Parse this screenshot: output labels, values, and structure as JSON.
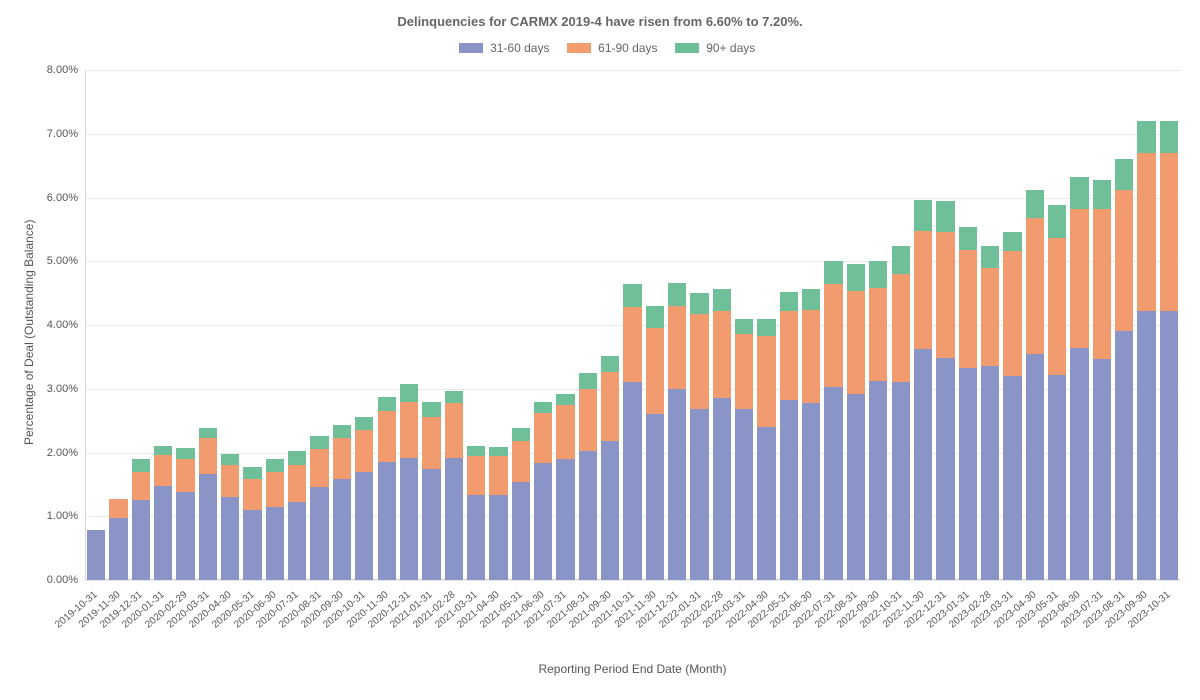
{
  "chart": {
    "type": "stacked-bar",
    "title": "Delinquencies for CARMX 2019-4 have risen from 6.60% to 7.20%.",
    "title_fontsize": 13,
    "title_fontweight": 700,
    "title_color": "#666666",
    "background_color": "#ffffff",
    "grid_color": "#e9e9e9",
    "axis_line_color": "#d8d8d8",
    "label_color": "#555555",
    "font_family": "Helvetica Neue, Arial, sans-serif",
    "x_axis_title": "Reporting Period End Date (Month)",
    "y_axis_title": "Percentage of Deal (Outstanding Balance)",
    "axis_title_fontsize": 12,
    "tick_fontsize": 11,
    "x_tick_fontsize": 10,
    "x_tick_rotation_deg": -40,
    "ylim": [
      0,
      8
    ],
    "ytick_step": 1,
    "y_tick_format": "pct2",
    "bar_gap_ratio": 0.18,
    "legend": {
      "position": "top-center",
      "items": [
        {
          "label": "31-60 days",
          "color": "#8a94c6"
        },
        {
          "label": "61-90 days",
          "color": "#f19b6f"
        },
        {
          "label": "90+ days",
          "color": "#6fbf99"
        }
      ]
    },
    "series_keys": [
      "d31_60",
      "d61_90",
      "d90p"
    ],
    "series_colors": {
      "d31_60": "#8a94c6",
      "d61_90": "#f19b6f",
      "d90p": "#6fbf99"
    },
    "categories": [
      "2019-10-31",
      "2019-11-30",
      "2019-12-31",
      "2020-01-31",
      "2020-02-29",
      "2020-03-31",
      "2020-04-30",
      "2020-05-31",
      "2020-06-30",
      "2020-07-31",
      "2020-08-31",
      "2020-09-30",
      "2020-10-31",
      "2020-11-30",
      "2020-12-31",
      "2021-01-31",
      "2021-02-28",
      "2021-03-31",
      "2021-04-30",
      "2021-05-31",
      "2021-06-30",
      "2021-07-31",
      "2021-08-31",
      "2021-09-30",
      "2021-10-31",
      "2021-11-30",
      "2021-12-31",
      "2022-01-31",
      "2022-02-28",
      "2022-03-31",
      "2022-04-30",
      "2022-05-31",
      "2022-06-30",
      "2022-07-31",
      "2022-08-31",
      "2022-09-30",
      "2022-10-31",
      "2022-11-30",
      "2022-12-31",
      "2023-01-31",
      "2023-02-28",
      "2023-03-31",
      "2023-04-30",
      "2023-05-31",
      "2023-06-30",
      "2023-07-31",
      "2023-08-31",
      "2023-09-30",
      "2023-10-31"
    ],
    "data": [
      {
        "d31_60": 0.78,
        "d61_90": 0.0,
        "d90p": 0.0
      },
      {
        "d31_60": 0.97,
        "d61_90": 0.3,
        "d90p": 0.0
      },
      {
        "d31_60": 1.25,
        "d61_90": 0.45,
        "d90p": 0.2
      },
      {
        "d31_60": 1.48,
        "d61_90": 0.48,
        "d90p": 0.15
      },
      {
        "d31_60": 1.38,
        "d61_90": 0.52,
        "d90p": 0.17
      },
      {
        "d31_60": 1.66,
        "d61_90": 0.57,
        "d90p": 0.15
      },
      {
        "d31_60": 1.3,
        "d61_90": 0.5,
        "d90p": 0.18
      },
      {
        "d31_60": 1.1,
        "d61_90": 0.48,
        "d90p": 0.2
      },
      {
        "d31_60": 1.15,
        "d61_90": 0.55,
        "d90p": 0.2
      },
      {
        "d31_60": 1.23,
        "d61_90": 0.58,
        "d90p": 0.22
      },
      {
        "d31_60": 1.46,
        "d61_90": 0.6,
        "d90p": 0.2
      },
      {
        "d31_60": 1.58,
        "d61_90": 0.65,
        "d90p": 0.2
      },
      {
        "d31_60": 1.7,
        "d61_90": 0.65,
        "d90p": 0.2
      },
      {
        "d31_60": 1.85,
        "d61_90": 0.8,
        "d90p": 0.22
      },
      {
        "d31_60": 1.92,
        "d61_90": 0.88,
        "d90p": 0.28
      },
      {
        "d31_60": 1.74,
        "d61_90": 0.82,
        "d90p": 0.24
      },
      {
        "d31_60": 1.92,
        "d61_90": 0.86,
        "d90p": 0.18
      },
      {
        "d31_60": 1.34,
        "d61_90": 0.6,
        "d90p": 0.16
      },
      {
        "d31_60": 1.34,
        "d61_90": 0.6,
        "d90p": 0.14
      },
      {
        "d31_60": 1.54,
        "d61_90": 0.64,
        "d90p": 0.2
      },
      {
        "d31_60": 1.84,
        "d61_90": 0.78,
        "d90p": 0.18
      },
      {
        "d31_60": 1.9,
        "d61_90": 0.84,
        "d90p": 0.18
      },
      {
        "d31_60": 2.02,
        "d61_90": 0.98,
        "d90p": 0.24
      },
      {
        "d31_60": 2.18,
        "d61_90": 1.08,
        "d90p": 0.26
      },
      {
        "d31_60": 3.1,
        "d61_90": 1.18,
        "d90p": 0.36
      },
      {
        "d31_60": 2.6,
        "d61_90": 1.36,
        "d90p": 0.34
      },
      {
        "d31_60": 3.0,
        "d61_90": 1.3,
        "d90p": 0.36
      },
      {
        "d31_60": 2.68,
        "d61_90": 1.5,
        "d90p": 0.32
      },
      {
        "d31_60": 2.86,
        "d61_90": 1.36,
        "d90p": 0.34
      },
      {
        "d31_60": 2.68,
        "d61_90": 1.18,
        "d90p": 0.24
      },
      {
        "d31_60": 2.4,
        "d61_90": 1.42,
        "d90p": 0.28
      },
      {
        "d31_60": 2.82,
        "d61_90": 1.4,
        "d90p": 0.3
      },
      {
        "d31_60": 2.78,
        "d61_90": 1.46,
        "d90p": 0.32
      },
      {
        "d31_60": 3.02,
        "d61_90": 1.62,
        "d90p": 0.36
      },
      {
        "d31_60": 2.92,
        "d61_90": 1.62,
        "d90p": 0.42
      },
      {
        "d31_60": 3.12,
        "d61_90": 1.46,
        "d90p": 0.42
      },
      {
        "d31_60": 3.1,
        "d61_90": 1.7,
        "d90p": 0.44
      },
      {
        "d31_60": 3.62,
        "d61_90": 1.86,
        "d90p": 0.48
      },
      {
        "d31_60": 3.48,
        "d61_90": 1.98,
        "d90p": 0.48
      },
      {
        "d31_60": 3.32,
        "d61_90": 1.86,
        "d90p": 0.36
      },
      {
        "d31_60": 3.36,
        "d61_90": 1.54,
        "d90p": 0.34
      },
      {
        "d31_60": 3.2,
        "d61_90": 1.96,
        "d90p": 0.3
      },
      {
        "d31_60": 3.54,
        "d61_90": 2.14,
        "d90p": 0.44
      },
      {
        "d31_60": 3.22,
        "d61_90": 2.14,
        "d90p": 0.52
      },
      {
        "d31_60": 3.64,
        "d61_90": 2.18,
        "d90p": 0.5
      },
      {
        "d31_60": 3.46,
        "d61_90": 2.36,
        "d90p": 0.46
      },
      {
        "d31_60": 3.9,
        "d61_90": 2.22,
        "d90p": 0.48
      },
      {
        "d31_60": 4.22,
        "d61_90": 2.48,
        "d90p": 0.5
      },
      {
        "d31_60": 4.22,
        "d61_90": 2.48,
        "d90p": 0.5
      }
    ]
  }
}
